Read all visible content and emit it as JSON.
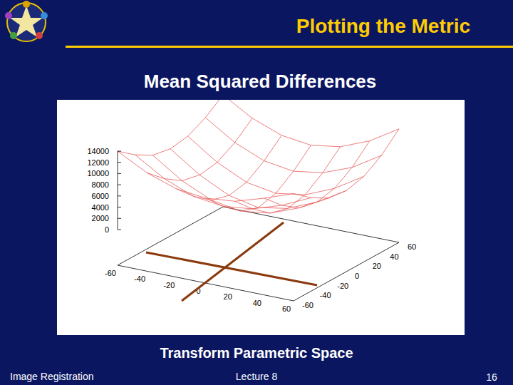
{
  "slide": {
    "title": "Plotting the Metric",
    "caption": "Transform Parametric Space",
    "footer": {
      "left": "Image Registration",
      "center": "Lecture 8",
      "page": 16
    }
  },
  "chart_data": {
    "type": "surface",
    "title": "Mean Squared Differences",
    "color": "#e85a5a",
    "x": [
      -60,
      -40,
      -20,
      0,
      20,
      40,
      60
    ],
    "y": [
      -60,
      -40,
      -20,
      0,
      20,
      40,
      60
    ],
    "z": [
      [
        14000,
        11200,
        9400,
        8800,
        9300,
        10900,
        12800
      ],
      [
        11600,
        8400,
        6300,
        5600,
        6200,
        7900,
        10300
      ],
      [
        9800,
        6300,
        3900,
        3000,
        3700,
        5700,
        8500
      ],
      [
        9200,
        5600,
        3000,
        1900,
        2800,
        5000,
        8100
      ],
      [
        9700,
        6100,
        3600,
        2700,
        3500,
        5700,
        8900
      ],
      [
        11300,
        7900,
        5700,
        4900,
        5700,
        7700,
        10900
      ],
      [
        13600,
        10500,
        8500,
        7800,
        8600,
        10700,
        13900
      ]
    ],
    "xlim": [
      -60,
      60
    ],
    "ylim": [
      -60,
      60
    ],
    "zlim": [
      0,
      14000
    ],
    "xticks": [
      -60,
      -40,
      -20,
      0,
      20,
      40,
      60
    ],
    "yticks": [
      -60,
      -40,
      -20,
      0,
      20,
      40,
      60
    ],
    "zticks": [
      0,
      2000,
      4000,
      6000,
      8000,
      10000,
      12000,
      14000
    ]
  }
}
